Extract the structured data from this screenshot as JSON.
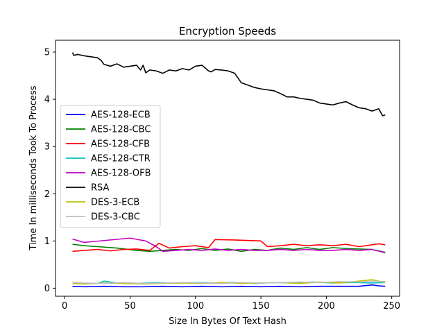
{
  "chart_data": {
    "type": "line",
    "title": "Encryption Speeds",
    "xlabel": "Size In Bytes Of Text Hash",
    "ylabel": "Time In milliseconds Took To Process",
    "xlim": [
      -7,
      256
    ],
    "ylim": [
      -0.17,
      5.25
    ],
    "xticks": [
      0,
      50,
      100,
      150,
      200,
      250
    ],
    "yticks": [
      0,
      1,
      2,
      3,
      4,
      5
    ],
    "grid": false,
    "legend_position": "center-left",
    "series": [
      {
        "name": "AES-128-ECB",
        "color": "#0000ff",
        "x": [
          6,
          15,
          30,
          45,
          60,
          75,
          90,
          105,
          120,
          135,
          150,
          165,
          180,
          195,
          210,
          225,
          235,
          240,
          245
        ],
        "y": [
          0.04,
          0.03,
          0.04,
          0.03,
          0.03,
          0.04,
          0.03,
          0.04,
          0.03,
          0.04,
          0.03,
          0.04,
          0.03,
          0.04,
          0.04,
          0.04,
          0.07,
          0.05,
          0.04
        ]
      },
      {
        "name": "AES-128-CBC",
        "color": "#008000",
        "x": [
          6,
          15,
          25,
          40,
          55,
          65,
          75,
          85,
          95,
          105,
          115,
          125,
          135,
          145,
          155,
          165,
          175,
          185,
          195,
          205,
          215,
          225,
          235,
          245
        ],
        "y": [
          0.93,
          0.9,
          0.88,
          0.85,
          0.8,
          0.78,
          0.8,
          0.82,
          0.8,
          0.84,
          0.8,
          0.83,
          0.78,
          0.82,
          0.8,
          0.85,
          0.82,
          0.86,
          0.82,
          0.86,
          0.84,
          0.83,
          0.82,
          0.76
        ]
      },
      {
        "name": "AES-128-CFB",
        "color": "#ff0000",
        "x": [
          6,
          15,
          25,
          35,
          45,
          55,
          65,
          72,
          80,
          90,
          100,
          110,
          115,
          130,
          150,
          155,
          165,
          175,
          185,
          195,
          205,
          215,
          225,
          235,
          240,
          245
        ],
        "y": [
          0.78,
          0.8,
          0.82,
          0.79,
          0.82,
          0.83,
          0.8,
          0.95,
          0.85,
          0.88,
          0.9,
          0.86,
          1.03,
          1.02,
          1.0,
          0.88,
          0.9,
          0.93,
          0.9,
          0.92,
          0.9,
          0.93,
          0.88,
          0.92,
          0.94,
          0.92
        ]
      },
      {
        "name": "AES-128-CTR",
        "color": "#00bfbf",
        "x": [
          6,
          15,
          25,
          30,
          40,
          55,
          70,
          85,
          100,
          115,
          130,
          145,
          160,
          175,
          190,
          205,
          220,
          235,
          245
        ],
        "y": [
          0.1,
          0.09,
          0.1,
          0.15,
          0.11,
          0.1,
          0.12,
          0.11,
          0.12,
          0.11,
          0.12,
          0.1,
          0.12,
          0.11,
          0.13,
          0.11,
          0.12,
          0.11,
          0.12
        ]
      },
      {
        "name": "AES-128-OFB",
        "color": "#bf00bf",
        "x": [
          6,
          15,
          50,
          62,
          70,
          75,
          85,
          95,
          105,
          115,
          125,
          135,
          145,
          155,
          165,
          175,
          185,
          195,
          205,
          215,
          225,
          235,
          245
        ],
        "y": [
          1.04,
          0.97,
          1.06,
          1.0,
          0.88,
          0.78,
          0.8,
          0.82,
          0.8,
          0.83,
          0.8,
          0.82,
          0.8,
          0.8,
          0.82,
          0.8,
          0.82,
          0.8,
          0.8,
          0.82,
          0.8,
          0.82,
          0.75
        ]
      },
      {
        "name": "RSA",
        "color": "#000000",
        "x": [
          6,
          7,
          10,
          15,
          20,
          25,
          28,
          30,
          35,
          40,
          45,
          50,
          55,
          58,
          60,
          62,
          65,
          70,
          75,
          80,
          85,
          90,
          95,
          100,
          105,
          110,
          112,
          115,
          120,
          125,
          130,
          135,
          140,
          145,
          150,
          155,
          160,
          165,
          170,
          175,
          180,
          185,
          190,
          195,
          200,
          205,
          210,
          215,
          220,
          225,
          230,
          235,
          240,
          243,
          245
        ],
        "y": [
          4.99,
          4.93,
          4.95,
          4.92,
          4.9,
          4.88,
          4.82,
          4.74,
          4.7,
          4.75,
          4.68,
          4.7,
          4.72,
          4.62,
          4.72,
          4.56,
          4.62,
          4.6,
          4.55,
          4.62,
          4.6,
          4.65,
          4.62,
          4.7,
          4.72,
          4.6,
          4.58,
          4.63,
          4.62,
          4.6,
          4.55,
          4.35,
          4.3,
          4.25,
          4.22,
          4.2,
          4.18,
          4.12,
          4.05,
          4.05,
          4.02,
          4.0,
          3.98,
          3.92,
          3.9,
          3.88,
          3.92,
          3.95,
          3.88,
          3.82,
          3.8,
          3.75,
          3.8,
          3.65,
          3.67
        ]
      },
      {
        "name": "DES-3-ECB",
        "color": "#bfbf00",
        "x": [
          6,
          15,
          30,
          45,
          60,
          75,
          90,
          105,
          120,
          135,
          150,
          165,
          180,
          195,
          210,
          225,
          235,
          245
        ],
        "y": [
          0.1,
          0.09,
          0.11,
          0.1,
          0.09,
          0.1,
          0.11,
          0.1,
          0.12,
          0.1,
          0.11,
          0.12,
          0.1,
          0.13,
          0.11,
          0.15,
          0.18,
          0.12
        ]
      },
      {
        "name": "DES-3-CBC",
        "color": "#bfbfbf",
        "x": [
          6,
          15,
          30,
          45,
          60,
          75,
          90,
          105,
          120,
          135,
          150,
          165,
          180,
          195,
          210,
          225,
          235,
          245
        ],
        "y": [
          0.12,
          0.11,
          0.1,
          0.12,
          0.1,
          0.11,
          0.12,
          0.11,
          0.1,
          0.12,
          0.11,
          0.12,
          0.13,
          0.12,
          0.14,
          0.13,
          0.15,
          0.14
        ]
      }
    ]
  }
}
